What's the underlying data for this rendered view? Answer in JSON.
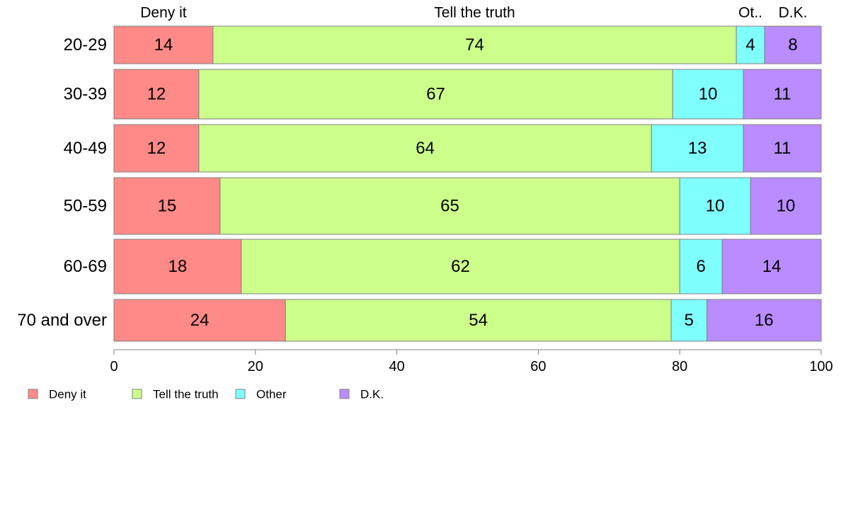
{
  "chart_data": {
    "type": "bar",
    "orientation": "horizontal",
    "stacked": true,
    "categories": [
      "20-29",
      "30-39",
      "40-49",
      "50-59",
      "60-69",
      "70 and over"
    ],
    "series": [
      {
        "name": "Deny it",
        "color": "#ff8a87",
        "values": [
          14,
          12,
          12,
          15,
          18,
          24
        ]
      },
      {
        "name": "Tell the truth",
        "color": "#cdff8b",
        "values": [
          74,
          67,
          64,
          65,
          62,
          54
        ]
      },
      {
        "name": "Other",
        "color": "#80ffff",
        "values": [
          4,
          10,
          13,
          10,
          6,
          5
        ]
      },
      {
        "name": "D.K.",
        "color": "#b98cff",
        "values": [
          8,
          11,
          11,
          10,
          14,
          16
        ]
      }
    ],
    "top_labels": [
      "Deny it",
      "Tell the truth",
      "Ot..",
      "D.K."
    ],
    "xlim": [
      0,
      100
    ],
    "xticks": [
      "0",
      "20",
      "40",
      "60",
      "80",
      "100"
    ],
    "grid": false,
    "legend_position": "bottom-left"
  }
}
